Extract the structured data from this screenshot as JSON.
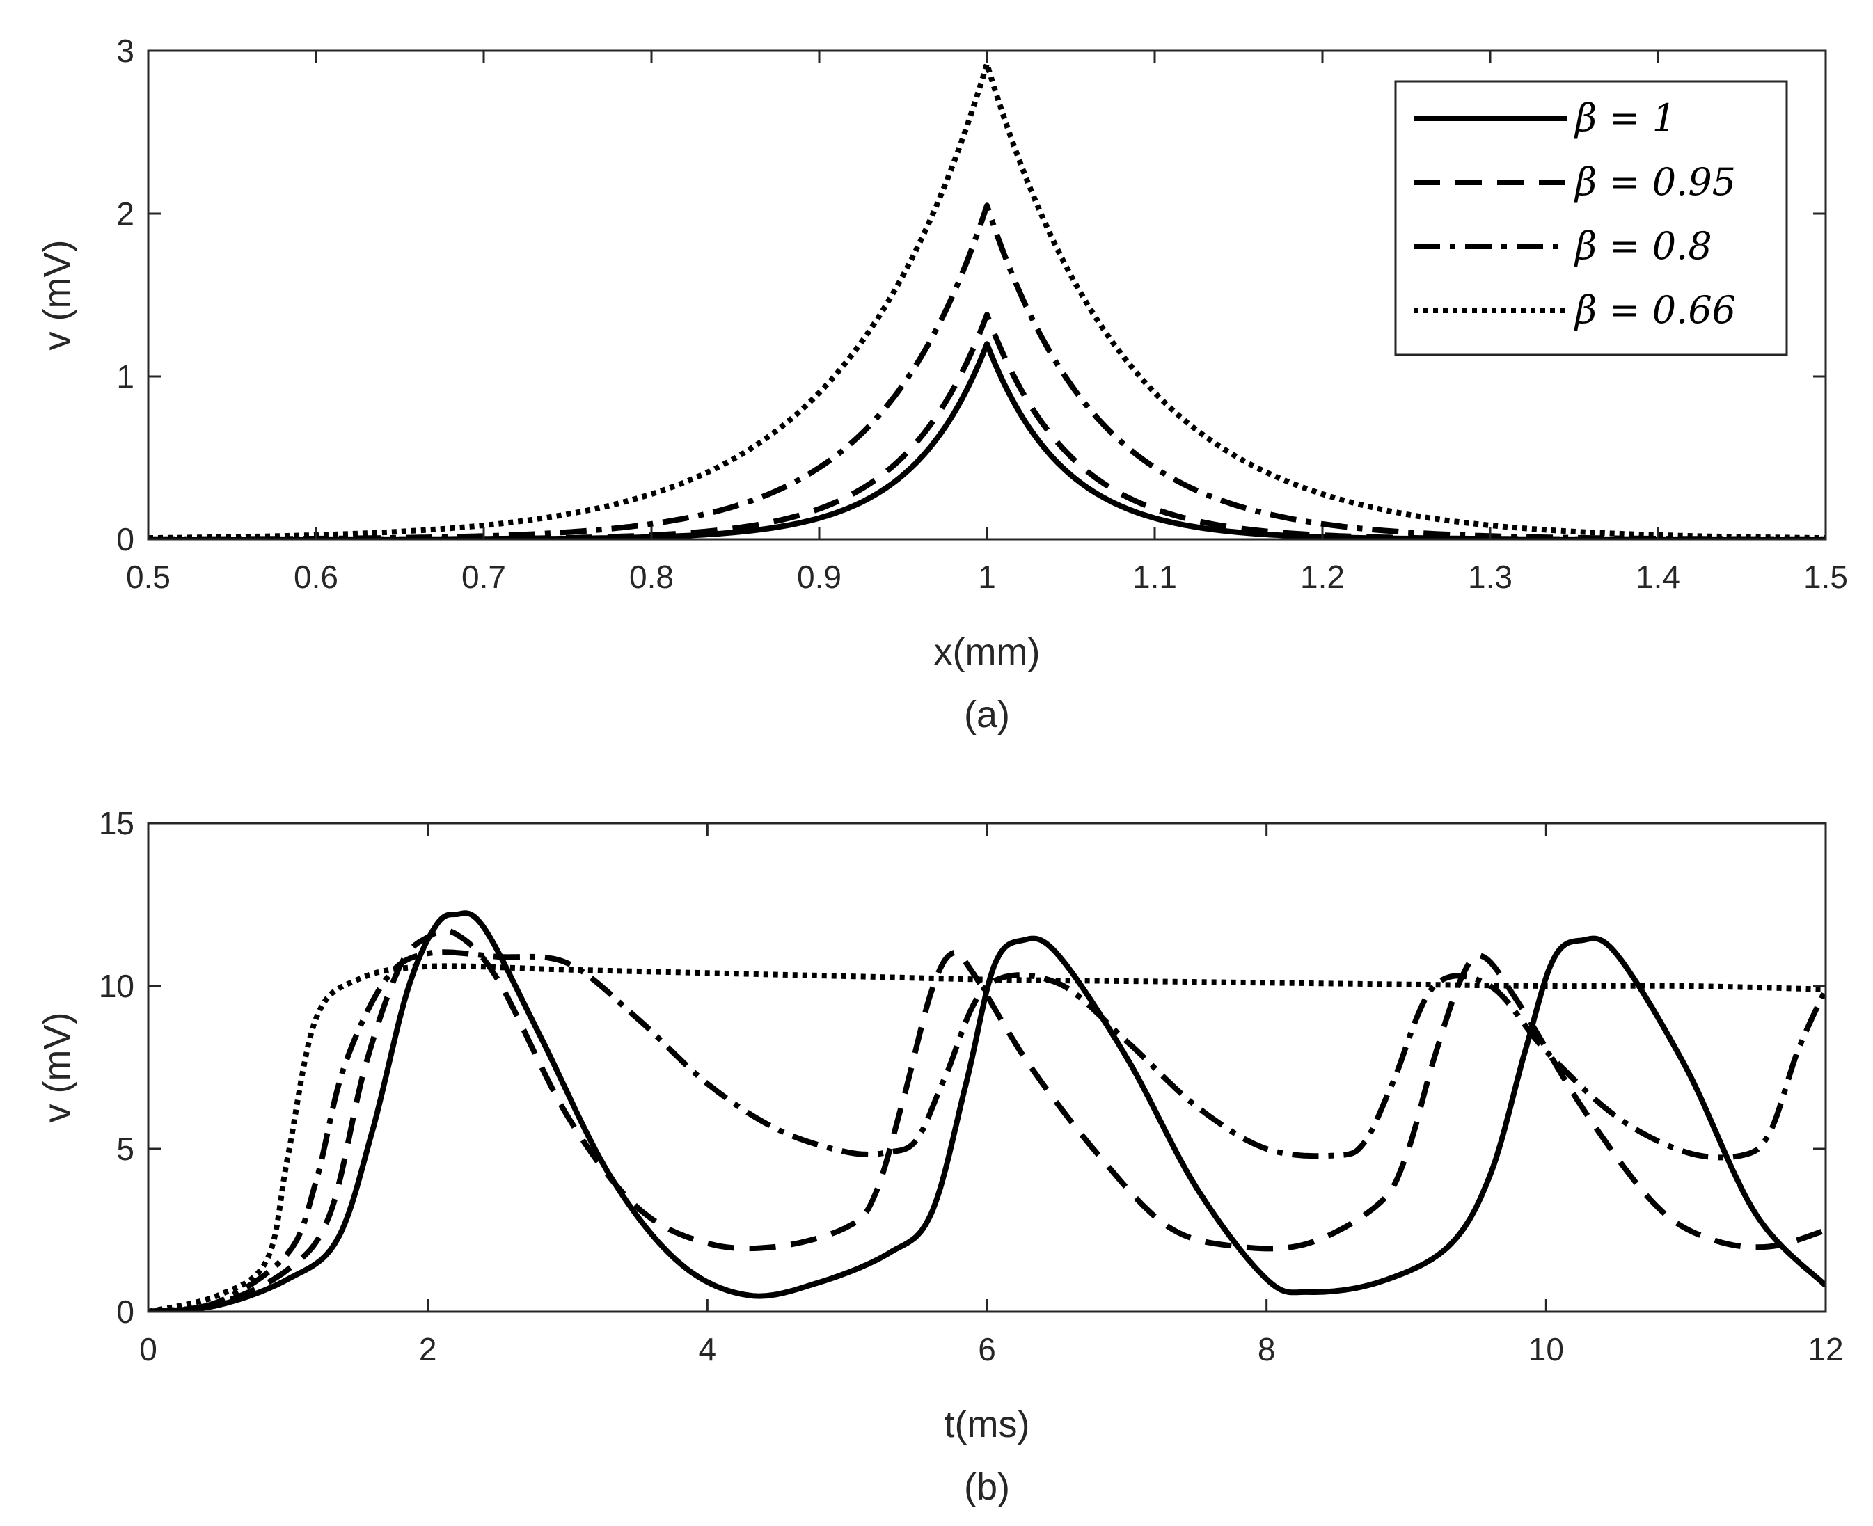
{
  "chart_data": [
    {
      "type": "line",
      "panel_label": "(a)",
      "xlabel": "x(mm)",
      "ylabel": "v (mV)",
      "xlim": [
        0.5,
        1.5
      ],
      "ylim": [
        0,
        3
      ],
      "xticks": [
        "0.5",
        "0.6",
        "0.7",
        "0.8",
        "0.9",
        "1",
        "1.1",
        "1.2",
        "1.3",
        "1.4",
        "1.5"
      ],
      "yticks": [
        "0",
        "1",
        "2",
        "3"
      ],
      "grid": false,
      "legend_position": "top-right",
      "series": [
        {
          "name": "β = 1",
          "style": "solid",
          "shape": "peak",
          "center": 1.0,
          "peak": 1.2,
          "width": 0.045
        },
        {
          "name": "β = 0.95",
          "style": "dashed",
          "shape": "peak",
          "center": 1.0,
          "peak": 1.38,
          "width": 0.05
        },
        {
          "name": "β = 0.8",
          "style": "dashdot",
          "shape": "peak",
          "center": 1.0,
          "peak": 2.05,
          "width": 0.065
        },
        {
          "name": "β = 0.66",
          "style": "dotted",
          "shape": "peak",
          "center": 1.0,
          "peak": 2.92,
          "width": 0.085
        }
      ]
    },
    {
      "type": "line",
      "panel_label": "(b)",
      "xlabel": "t(ms)",
      "ylabel": "v (mV)",
      "xlim": [
        0,
        12
      ],
      "ylim": [
        0,
        15
      ],
      "xticks": [
        "0",
        "2",
        "4",
        "6",
        "8",
        "10",
        "12"
      ],
      "yticks": [
        "0",
        "5",
        "10",
        "15"
      ],
      "grid": false,
      "series": [
        {
          "name": "β = 1",
          "style": "solid",
          "x": [
            0,
            0.5,
            1.0,
            1.35,
            1.6,
            1.85,
            2.05,
            2.2,
            2.4,
            2.8,
            3.3,
            3.8,
            4.3,
            4.8,
            5.3,
            5.6,
            5.85,
            6.05,
            6.25,
            6.5,
            7.0,
            7.5,
            8.0,
            8.3,
            8.8,
            9.3,
            9.6,
            9.85,
            10.05,
            10.25,
            10.5,
            11.0,
            11.5,
            12.0
          ],
          "y": [
            0,
            0.2,
            1.0,
            2.2,
            5.5,
            9.8,
            11.8,
            12.2,
            11.8,
            8.5,
            4.2,
            1.5,
            0.5,
            0.9,
            1.8,
            3.0,
            7.0,
            10.6,
            11.4,
            11.0,
            7.8,
            3.8,
            1.0,
            0.6,
            0.9,
            2.0,
            4.2,
            8.0,
            10.8,
            11.4,
            11.0,
            7.5,
            3.0,
            0.8
          ]
        },
        {
          "name": "β = 0.95",
          "style": "dashed",
          "x": [
            0,
            0.5,
            1.0,
            1.3,
            1.55,
            1.8,
            2.0,
            2.2,
            2.5,
            3.0,
            3.5,
            4.0,
            4.5,
            5.0,
            5.2,
            5.4,
            5.6,
            5.75,
            5.9,
            6.3,
            6.8,
            7.3,
            7.8,
            8.3,
            8.8,
            9.0,
            9.2,
            9.4,
            9.55,
            9.8,
            10.3,
            10.8,
            11.2,
            11.6,
            12.0
          ],
          "y": [
            0,
            0.25,
            1.3,
            3.0,
            7.5,
            10.6,
            11.5,
            11.6,
            10.2,
            6.0,
            3.2,
            2.1,
            2.0,
            2.6,
            3.6,
            6.5,
            9.8,
            11.0,
            10.4,
            7.6,
            4.8,
            2.6,
            2.0,
            2.1,
            3.3,
            4.8,
            7.8,
            10.3,
            10.9,
            9.5,
            6.0,
            3.2,
            2.2,
            2.0,
            2.5
          ]
        },
        {
          "name": "β = 0.8",
          "style": "dashdot",
          "x": [
            0,
            0.5,
            1.0,
            1.2,
            1.4,
            1.7,
            2.0,
            2.5,
            3.0,
            3.5,
            4.0,
            4.5,
            5.0,
            5.3,
            5.5,
            5.7,
            6.0,
            6.5,
            7.0,
            7.5,
            8.0,
            8.5,
            8.7,
            8.9,
            9.2,
            9.6,
            10.0,
            10.5,
            11.0,
            11.4,
            11.6,
            11.8,
            12.0
          ],
          "y": [
            0,
            0.3,
            1.8,
            4.0,
            7.5,
            10.2,
            11.0,
            10.9,
            10.7,
            9.0,
            7.0,
            5.6,
            4.9,
            4.9,
            5.3,
            7.2,
            10.0,
            10.1,
            8.3,
            6.3,
            5.0,
            4.8,
            5.2,
            7.0,
            10.0,
            10.0,
            8.0,
            6.0,
            4.9,
            4.8,
            5.5,
            8.0,
            9.9
          ]
        },
        {
          "name": "β = 0.66",
          "style": "dotted",
          "x": [
            0,
            0.5,
            0.85,
            1.0,
            1.2,
            1.5,
            2.0,
            3.0,
            4.0,
            5.0,
            6.0,
            7.0,
            8.0,
            9.0,
            10.0,
            11.0,
            12.0
          ],
          "y": [
            0,
            0.5,
            1.6,
            4.8,
            9.0,
            10.2,
            10.6,
            10.5,
            10.4,
            10.3,
            10.2,
            10.15,
            10.1,
            10.05,
            10.0,
            10.0,
            9.9
          ]
        }
      ]
    }
  ]
}
